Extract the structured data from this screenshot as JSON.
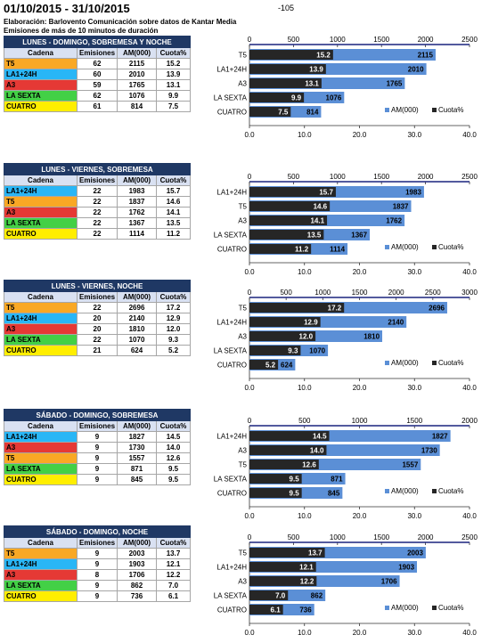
{
  "header": {
    "title": "01/10/2015 - 31/10/2015",
    "page_number": "-105",
    "source_line": "Elaboración: Barlovento Comunicación sobre datos de Kantar Media",
    "duration_line": "Emisiones de más de 10 minutos de duración"
  },
  "columns": [
    "Cadena",
    "Emisiones",
    "AM(000)",
    "Cuota%"
  ],
  "colors": {
    "T5": "#f9a825",
    "LA1+24H": "#29b6f6",
    "A3": "#e53935",
    "LA SEXTA": "#43d046",
    "CUATRO": "#ffee00",
    "am_bar": "#5b8fd6",
    "cuota_bar": "#262626",
    "header_bg": "#1f3864",
    "axis_line": "#1a237e"
  },
  "blocks": [
    {
      "title": "LUNES - DOMINGO, SOBREMESA Y NOCHE",
      "rows": [
        {
          "cadena": "T5",
          "emisiones": "62",
          "am": "2115",
          "cuota": "15.2"
        },
        {
          "cadena": "LA1+24H",
          "emisiones": "60",
          "am": "2010",
          "cuota": "13.9"
        },
        {
          "cadena": "A3",
          "emisiones": "59",
          "am": "1765",
          "cuota": "13.1"
        },
        {
          "cadena": "LA SEXTA",
          "emisiones": "62",
          "am": "1076",
          "cuota": "9.9"
        },
        {
          "cadena": "CUATRO",
          "emisiones": "61",
          "am": "814",
          "cuota": "7.5"
        }
      ]
    },
    {
      "title": "LUNES - VIERNES, SOBREMESA",
      "rows": [
        {
          "cadena": "LA1+24H",
          "emisiones": "22",
          "am": "1983",
          "cuota": "15.7"
        },
        {
          "cadena": "T5",
          "emisiones": "22",
          "am": "1837",
          "cuota": "14.6"
        },
        {
          "cadena": "A3",
          "emisiones": "22",
          "am": "1762",
          "cuota": "14.1"
        },
        {
          "cadena": "LA SEXTA",
          "emisiones": "22",
          "am": "1367",
          "cuota": "13.5"
        },
        {
          "cadena": "CUATRO",
          "emisiones": "22",
          "am": "1114",
          "cuota": "11.2"
        }
      ]
    },
    {
      "title": "LUNES - VIERNES, NOCHE",
      "rows": [
        {
          "cadena": "T5",
          "emisiones": "22",
          "am": "2696",
          "cuota": "17.2"
        },
        {
          "cadena": "LA1+24H",
          "emisiones": "20",
          "am": "2140",
          "cuota": "12.9"
        },
        {
          "cadena": "A3",
          "emisiones": "20",
          "am": "1810",
          "cuota": "12.0"
        },
        {
          "cadena": "LA SEXTA",
          "emisiones": "22",
          "am": "1070",
          "cuota": "9.3"
        },
        {
          "cadena": "CUATRO",
          "emisiones": "21",
          "am": "624",
          "cuota": "5.2"
        }
      ]
    },
    {
      "title": "SÁBADO - DOMINGO, SOBREMESA",
      "rows": [
        {
          "cadena": "LA1+24H",
          "emisiones": "9",
          "am": "1827",
          "cuota": "14.5"
        },
        {
          "cadena": "A3",
          "emisiones": "9",
          "am": "1730",
          "cuota": "14.0"
        },
        {
          "cadena": "T5",
          "emisiones": "9",
          "am": "1557",
          "cuota": "12.6"
        },
        {
          "cadena": "LA SEXTA",
          "emisiones": "9",
          "am": "871",
          "cuota": "9.5"
        },
        {
          "cadena": "CUATRO",
          "emisiones": "9",
          "am": "845",
          "cuota": "9.5"
        }
      ]
    },
    {
      "title": "SÁBADO - DOMINGO, NOCHE",
      "rows": [
        {
          "cadena": "T5",
          "emisiones": "9",
          "am": "2003",
          "cuota": "13.7"
        },
        {
          "cadena": "LA1+24H",
          "emisiones": "9",
          "am": "1903",
          "cuota": "12.1"
        },
        {
          "cadena": "A3",
          "emisiones": "8",
          "am": "1706",
          "cuota": "12.2"
        },
        {
          "cadena": "LA SEXTA",
          "emisiones": "9",
          "am": "862",
          "cuota": "7.0"
        },
        {
          "cadena": "CUATRO",
          "emisiones": "9",
          "am": "736",
          "cuota": "6.1"
        }
      ]
    }
  ],
  "chart_data": [
    {
      "type": "bar",
      "orientation": "horizontal",
      "categories": [
        "T5",
        "LA1+24H",
        "A3",
        "LA SEXTA",
        "CUATRO"
      ],
      "series": [
        {
          "name": "AM(000)",
          "values": [
            2115,
            2010,
            1765,
            1076,
            814
          ],
          "axis": "top"
        },
        {
          "name": "Cuota%",
          "values": [
            15.2,
            13.9,
            13.1,
            9.9,
            7.5
          ],
          "axis": "bottom"
        }
      ],
      "top_axis": {
        "range": [
          0,
          2500
        ],
        "ticks": [
          "0",
          "500",
          "1000",
          "1500",
          "2000",
          "2500"
        ]
      },
      "bottom_axis": {
        "range": [
          0,
          40
        ],
        "ticks": [
          "0.0",
          "10.0",
          "20.0",
          "30.0",
          "40.0"
        ]
      },
      "legend": [
        "AM(000)",
        "Cuota%"
      ],
      "legend_position": "bottom-right"
    },
    {
      "type": "bar",
      "orientation": "horizontal",
      "categories": [
        "LA1+24H",
        "T5",
        "A3",
        "LA SEXTA",
        "CUATRO"
      ],
      "series": [
        {
          "name": "AM(000)",
          "values": [
            1983,
            1837,
            1762,
            1367,
            1114
          ],
          "axis": "top"
        },
        {
          "name": "Cuota%",
          "values": [
            15.7,
            14.6,
            14.1,
            13.5,
            11.2
          ],
          "axis": "bottom"
        }
      ],
      "top_axis": {
        "range": [
          0,
          2500
        ],
        "ticks": [
          "0",
          "500",
          "1000",
          "1500",
          "2000",
          "2500"
        ]
      },
      "bottom_axis": {
        "range": [
          0,
          40
        ],
        "ticks": [
          "0.0",
          "10.0",
          "20.0",
          "30.0",
          "40.0"
        ]
      },
      "legend": [
        "AM(000)",
        "Cuota%"
      ],
      "legend_position": "bottom-right"
    },
    {
      "type": "bar",
      "orientation": "horizontal",
      "categories": [
        "T5",
        "LA1+24H",
        "A3",
        "LA SEXTA",
        "CUATRO"
      ],
      "series": [
        {
          "name": "AM(000)",
          "values": [
            2696,
            2140,
            1810,
            1070,
            624
          ],
          "axis": "top"
        },
        {
          "name": "Cuota%",
          "values": [
            17.2,
            12.9,
            12.0,
            9.3,
            5.2
          ],
          "axis": "bottom"
        }
      ],
      "top_axis": {
        "range": [
          0,
          3000
        ],
        "ticks": [
          "0",
          "500",
          "1000",
          "1500",
          "2000",
          "2500",
          "3000"
        ]
      },
      "bottom_axis": {
        "range": [
          0,
          40
        ],
        "ticks": [
          "0.0",
          "10.0",
          "20.0",
          "30.0",
          "40.0"
        ]
      },
      "legend": [
        "AM(000)",
        "Cuota%"
      ],
      "legend_position": "bottom-right"
    },
    {
      "type": "bar",
      "orientation": "horizontal",
      "categories": [
        "LA1+24H",
        "A3",
        "T5",
        "LA SEXTA",
        "CUATRO"
      ],
      "series": [
        {
          "name": "AM(000)",
          "values": [
            1827,
            1730,
            1557,
            871,
            845
          ],
          "axis": "top"
        },
        {
          "name": "Cuota%",
          "values": [
            14.5,
            14.0,
            12.6,
            9.5,
            9.5
          ],
          "axis": "bottom"
        }
      ],
      "top_axis": {
        "range": [
          0,
          2000
        ],
        "ticks": [
          "0",
          "500",
          "1000",
          "1500",
          "2000"
        ]
      },
      "bottom_axis": {
        "range": [
          0,
          40
        ],
        "ticks": [
          "0.0",
          "10.0",
          "20.0",
          "30.0",
          "40.0"
        ]
      },
      "legend": [
        "AM(000)",
        "Cuota%"
      ],
      "legend_position": "bottom-right"
    },
    {
      "type": "bar",
      "orientation": "horizontal",
      "categories": [
        "T5",
        "LA1+24H",
        "A3",
        "LA SEXTA",
        "CUATRO"
      ],
      "series": [
        {
          "name": "AM(000)",
          "values": [
            2003,
            1903,
            1706,
            862,
            736
          ],
          "axis": "top"
        },
        {
          "name": "Cuota%",
          "values": [
            13.7,
            12.1,
            12.2,
            7.0,
            6.1
          ],
          "axis": "bottom"
        }
      ],
      "top_axis": {
        "range": [
          0,
          2500
        ],
        "ticks": [
          "0",
          "500",
          "1000",
          "1500",
          "2000",
          "2500"
        ]
      },
      "bottom_axis": {
        "range": [
          0,
          40
        ],
        "ticks": [
          "0.0",
          "10.0",
          "20.0",
          "30.0",
          "40.0"
        ]
      },
      "legend": [
        "AM(000)",
        "Cuota%"
      ],
      "legend_position": "bottom-right"
    }
  ]
}
